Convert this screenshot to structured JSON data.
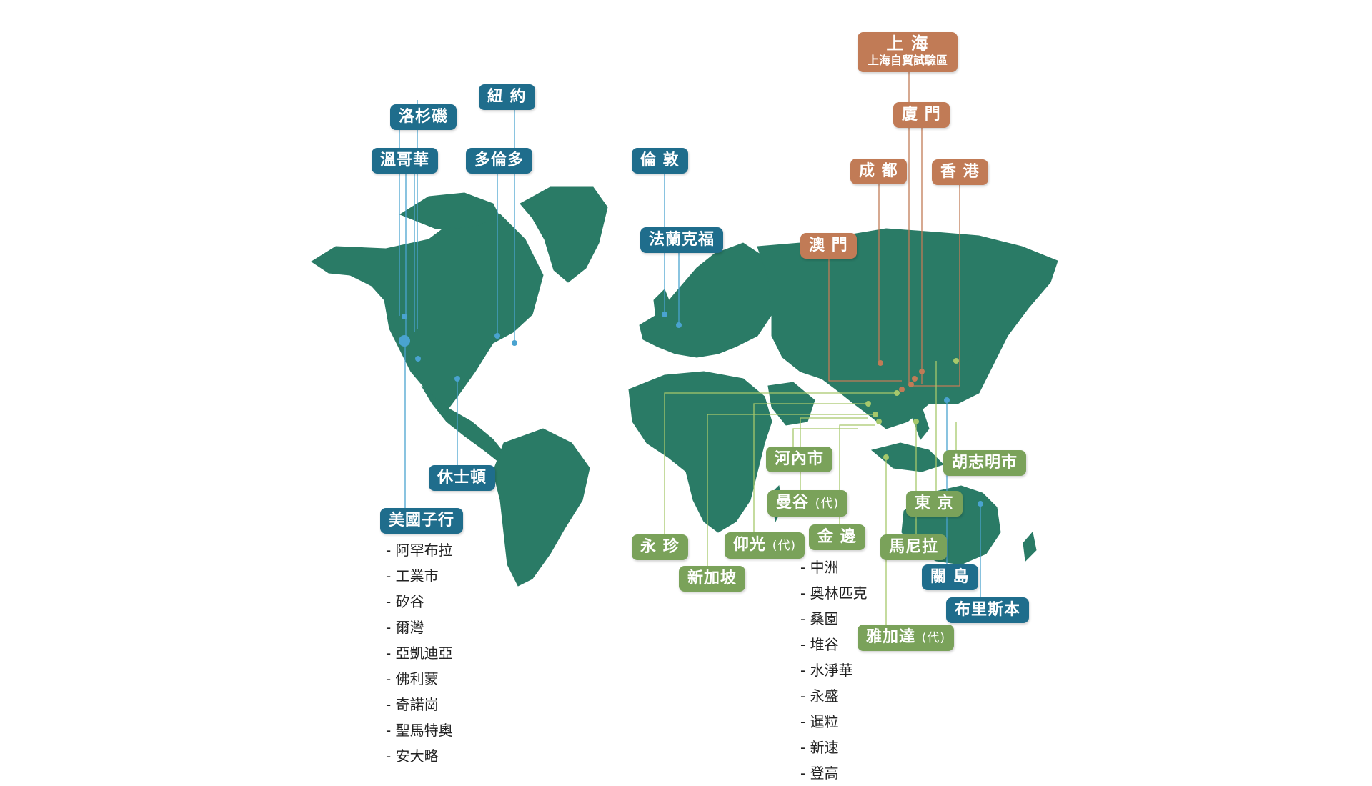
{
  "colors": {
    "land": "#2a7b66",
    "americas_europe": "#1f6d8c",
    "asia_green": "#7aa25a",
    "china": "#c17b56"
  },
  "labels": {
    "la": "洛杉磯",
    "ny": "紐 約",
    "vancouver": "溫哥華",
    "toronto": "多倫多",
    "london": "倫 敦",
    "frankfurt": "法蘭克福",
    "houston": "休士頓",
    "us_sub": "美國子行",
    "shanghai": "上 海",
    "shanghai_ftz": "上海自貿試驗區",
    "xiamen": "廈 門",
    "chengdu": "成 都",
    "hongkong": "香 港",
    "macau": "澳 門",
    "hanoi": "河內市",
    "bangkok": "曼谷",
    "hcmc": "胡志明市",
    "tokyo": "東 京",
    "yangon": "仰光",
    "kampot": "金 邊",
    "manila": "馬尼拉",
    "phnom": "永 珍",
    "singapore": "新加坡",
    "guam": "關 島",
    "brisbane": "布里斯本",
    "jakarta": "雅加達",
    "rep_office": "(代)"
  },
  "us_branches": [
    "阿罕布拉",
    "工業市",
    "矽谷",
    "爾灣",
    "亞凱迪亞",
    "佛利蒙",
    "奇諾崗",
    "聖馬特奧",
    "安大略"
  ],
  "cambodia_branches": [
    "中洲",
    "奧林匹克",
    "桑園",
    "堆谷",
    "水淨華",
    "永盛",
    "暹粒",
    "新速",
    "登高"
  ]
}
